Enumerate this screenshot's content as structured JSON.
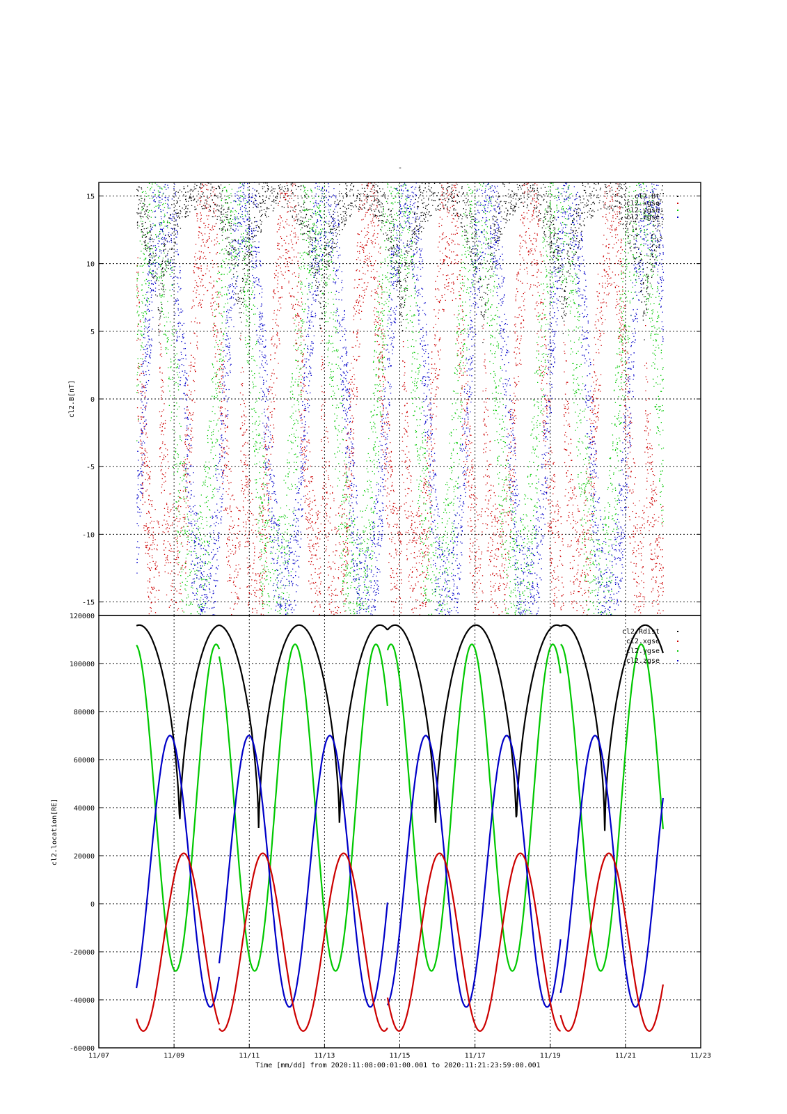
{
  "top_mark": "-",
  "colors": {
    "black": "#000000",
    "red": "#cc0000",
    "green": "#00c800",
    "blue": "#0000c8"
  },
  "x_axis": {
    "label": "Time [mm/dd]  from 2020:11:08:00:01:00.001  to  2020:11:21:23:59:00.001",
    "ticks": [
      {
        "day": 7,
        "label": "11/07"
      },
      {
        "day": 9,
        "label": "11/09"
      },
      {
        "day": 11,
        "label": "11/11"
      },
      {
        "day": 13,
        "label": "11/13"
      },
      {
        "day": 15,
        "label": "11/15"
      },
      {
        "day": 17,
        "label": "11/17"
      },
      {
        "day": 19,
        "label": "11/19"
      },
      {
        "day": 21,
        "label": "11/21"
      },
      {
        "day": 23,
        "label": "11/23"
      }
    ],
    "range_days": [
      7,
      23
    ],
    "data_range_days": [
      8.0,
      22.0
    ]
  },
  "chart_data": [
    {
      "type": "scatter",
      "ylabel": "cl2.B[nT]",
      "ylim": [
        -16,
        16
      ],
      "yticks": [
        15,
        10,
        5,
        0,
        -5,
        -10,
        -15
      ],
      "grid": true,
      "legend_placement": "top-right",
      "series": [
        {
          "name": "cl2.Bt",
          "color": "black"
        },
        {
          "name": "cl2.xgse",
          "color": "red"
        },
        {
          "name": "cl2.ygse",
          "color": "green"
        },
        {
          "name": "cl2.zgse",
          "color": "blue"
        }
      ],
      "description_values": {
        "bt_range_nT": [
          5,
          16
        ],
        "components_range_nT": [
          -16,
          16
        ]
      }
    },
    {
      "type": "line",
      "ylabel": "cl2.location[RE]",
      "ylim": [
        -60000,
        120000
      ],
      "yticks": [
        120000,
        100000,
        80000,
        60000,
        40000,
        20000,
        0,
        -20000,
        -40000,
        -60000
      ],
      "grid": true,
      "legend_placement": "top-right",
      "series": [
        {
          "name": "cl2.Rdist",
          "color": "black",
          "max": 116000,
          "min": 29500
        },
        {
          "name": "cl2.xgse",
          "color": "red",
          "max": 21000,
          "min": -53000
        },
        {
          "name": "cl2.ygse",
          "color": "green",
          "max": 108000,
          "min": -28000
        },
        {
          "name": "cl2.zgse",
          "color": "blue",
          "max": 70000,
          "min": -43000
        }
      ],
      "orbit_period_days": 2.15,
      "perigee_days": [
        9.15,
        11.25,
        13.4,
        15.95,
        18.1,
        20.45
      ]
    }
  ]
}
